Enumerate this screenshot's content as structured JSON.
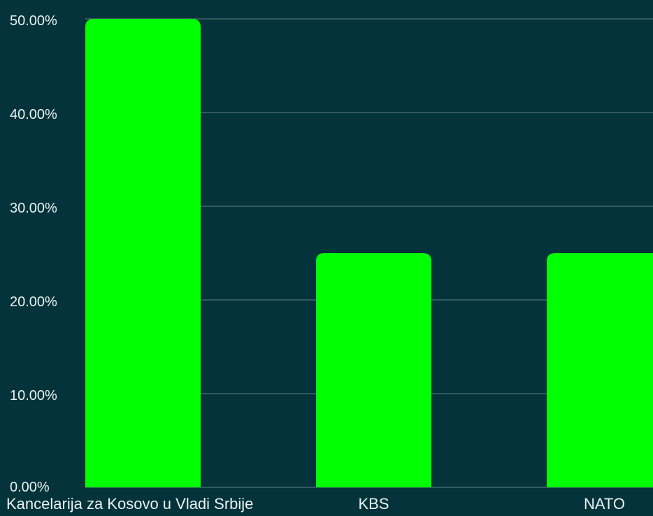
{
  "colors": {
    "background": "#05333B",
    "bar": "#00FF00",
    "grid": "#5F7F82",
    "text": "#E9F2F0"
  },
  "chart_data": {
    "type": "bar",
    "title": "",
    "xlabel": "",
    "ylabel": "",
    "categories": [
      "Kancelarija za Kosovo u Vladi Srbije",
      "KBS",
      "NATO"
    ],
    "values": [
      50,
      25,
      25
    ],
    "y_ticks": [
      0,
      10,
      20,
      30,
      40,
      50
    ],
    "y_tick_labels": [
      "0.00%",
      "10.00%",
      "20.00%",
      "30.00%",
      "40.00%",
      "50.00%"
    ],
    "ylim": [
      0,
      50
    ],
    "grid": true,
    "legend": "none"
  }
}
